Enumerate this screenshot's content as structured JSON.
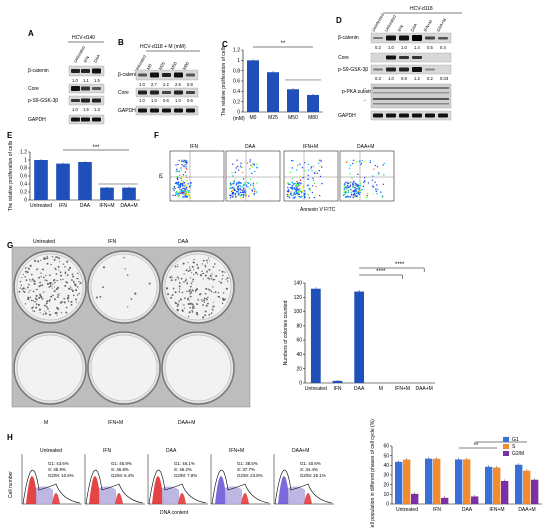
{
  "panel_labels": [
    "A",
    "B",
    "C",
    "D",
    "E",
    "F",
    "G",
    "H"
  ],
  "panelA": {
    "cell_line": "HCV-d140",
    "lanes": [
      "Untreated",
      "IFN",
      "DAA"
    ],
    "rows": [
      "β-catenin",
      "Core",
      "p-S9-GSK-3β",
      "GAPDH"
    ],
    "quant_bcat": [
      "1.0",
      "1.1",
      "1.5"
    ],
    "quant_gsk": [
      "1.0",
      "1.5",
      "1.3"
    ]
  },
  "panelB": {
    "cell_line": "HCV-d118 + M (mM)",
    "lanes": [
      "Untreated",
      "M0",
      "M25",
      "M50",
      "M80"
    ],
    "rows": [
      "β-catenin",
      "Core",
      "GAPDH"
    ],
    "quant_bcat": [
      "1.0",
      "2.7",
      "2.2",
      "2.6",
      "0.8"
    ],
    "quant_core": [
      "1.0",
      "1.0",
      "0.6",
      "1.0",
      "0.6"
    ]
  },
  "panelD": {
    "cell_line": "HCV-d118",
    "lanes": [
      "Uninfected",
      "Untreated",
      "IFN",
      "DAA",
      "IFN+M",
      "DAA+M"
    ],
    "rows": [
      "β-catenin",
      "Core",
      "p-S9-GSK-3β",
      "p-PKA substrates",
      "GAPDH"
    ],
    "quant_bcat": [
      "0.2",
      "1.0",
      "1.0",
      "1.4",
      "0.5",
      "0.4"
    ],
    "quant_gsk": [
      "0.3",
      "1.0",
      "0.9",
      "1.2",
      "0.2",
      "0.03"
    ]
  },
  "panelF": {
    "conditions": [
      "IFN",
      "DAA",
      "IFN+M",
      "DAA+M"
    ],
    "xlabel": "Annexin V FITC",
    "ylabel": "PI"
  },
  "panelG": {
    "plates": [
      "Untreated",
      "IFN",
      "DAA",
      "M",
      "IFN+M",
      "DAA+M"
    ]
  },
  "panelH": {
    "conditions": [
      "Untreated",
      "IFN",
      "DAA",
      "IFN+M",
      "DAA+M"
    ],
    "g1": [
      "G1: 43.6%",
      "G1: 46.9%",
      "G1: 46.1%",
      "G1: 38.5%",
      "G1: 40.6%"
    ],
    "s": [
      "S: 45.9%",
      "S: 46.8%",
      "S: 46.2%",
      "S: 37.7%",
      "S: 34.4%"
    ],
    "g2m": [
      "G2/M: 10.5%",
      "G2/M: 6.4%",
      "G2/M: 7.8%",
      "G2/M: 23.8%",
      "G2/M: 25.1%"
    ],
    "xlabel": "DNA content",
    "ylabel": "Cell number"
  },
  "chart_data": [
    {
      "id": "C",
      "type": "bar",
      "categories": [
        "M0",
        "M25",
        "M50",
        "M80"
      ],
      "values": [
        1.0,
        0.77,
        0.44,
        0.33
      ],
      "errors": [
        0.02,
        0.02,
        0.02,
        0.02
      ],
      "xlabel": "(mM)",
      "ylabel": "The relative proliferation of cells",
      "ylim": [
        0,
        1.2
      ],
      "yticks": [
        "0",
        "0.2",
        "0.4",
        "0.6",
        "0.8",
        "1",
        "1.2"
      ],
      "significance": "**",
      "color": "#1f4fb8"
    },
    {
      "id": "E",
      "type": "bar",
      "categories": [
        "Untreated",
        "IFN",
        "DAA",
        "IFN+M",
        "DAA+M"
      ],
      "values": [
        1.0,
        0.91,
        0.95,
        0.31,
        0.31
      ],
      "errors": [
        0.02,
        0.02,
        0.02,
        0.02,
        0.02
      ],
      "ylabel": "The relative proliferation of cells",
      "ylim": [
        0,
        1.2
      ],
      "yticks": [
        "0",
        "0.2",
        "0.4",
        "0.6",
        "0.8",
        "1",
        "1.2"
      ],
      "significance": "***",
      "color": "#1f4fb8"
    },
    {
      "id": "G",
      "type": "bar",
      "categories": [
        "Untreated",
        "IFN",
        "DAA",
        "M",
        "IFN+M",
        "DAA+M"
      ],
      "values": [
        132,
        3,
        128,
        0,
        0,
        0
      ],
      "errors": [
        2,
        1,
        2,
        0,
        0,
        0
      ],
      "ylabel": "Numbers of colonies counted",
      "ylim": [
        0,
        140
      ],
      "yticks": [
        "0",
        "20",
        "40",
        "60",
        "80",
        "100",
        "120",
        "140"
      ],
      "significance": [
        "****",
        "****"
      ],
      "color": "#1f4fb8"
    },
    {
      "id": "H",
      "type": "bar",
      "categories": [
        "Untreated",
        "IFN",
        "DAA",
        "IFN+M",
        "DAA+M"
      ],
      "series": [
        {
          "name": "G1",
          "values": [
            43.6,
            46.9,
            46.1,
            38.5,
            40.6
          ],
          "color": "#3b6fd8"
        },
        {
          "name": "S",
          "values": [
            45.9,
            46.8,
            46.2,
            37.7,
            34.4
          ],
          "color": "#f28a2e"
        },
        {
          "name": "G2/M",
          "values": [
            10.5,
            6.4,
            7.8,
            23.8,
            25.1
          ],
          "color": "#7a2fa6"
        }
      ],
      "ylabel": "Cell population in different phases of cell cycle (%)",
      "ylim": [
        0,
        60
      ],
      "yticks": [
        "0",
        "10",
        "20",
        "30",
        "40",
        "50",
        "60"
      ],
      "significance": [
        "**",
        "**"
      ],
      "legend": "top-right"
    }
  ]
}
